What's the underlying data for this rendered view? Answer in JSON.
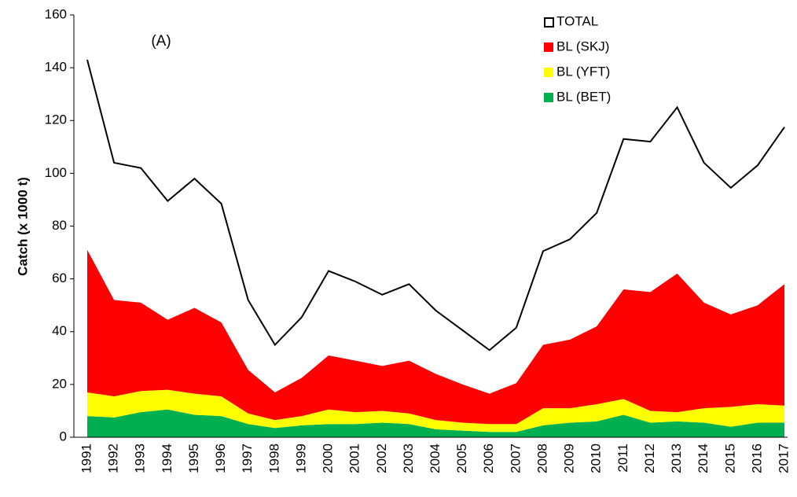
{
  "chart_data": {
    "type": "stacked-area",
    "ylabel": "Catch (x 1000 t)",
    "annotation": "(A)",
    "categories": [
      "1991",
      "1992",
      "1993",
      "1994",
      "1995",
      "1996",
      "1997",
      "1998",
      "1999",
      "2000",
      "2001",
      "2002",
      "2003",
      "2004",
      "2005",
      "2006",
      "2007",
      "2008",
      "2009",
      "2010",
      "2011",
      "2012",
      "2013",
      "2014",
      "2015",
      "2016",
      "2017"
    ],
    "series": [
      {
        "name": "TOTAL",
        "color": "#000000",
        "stacked": false,
        "values": [
          143,
          104,
          102,
          89.5,
          98,
          88.5,
          52,
          35,
          45.5,
          63,
          59,
          54,
          58,
          48,
          40.5,
          33,
          41.5,
          70.5,
          75,
          85,
          113,
          112,
          125,
          104,
          94.5,
          103,
          117.5
        ]
      },
      {
        "name": "BL (SKJ)",
        "color": "#ff0000",
        "stacked": true,
        "values": [
          54,
          36.5,
          33.5,
          26.5,
          32.5,
          28,
          16.5,
          10.5,
          14.5,
          20.5,
          19.5,
          17,
          20,
          17.5,
          14.5,
          11.5,
          15.5,
          24,
          26,
          29.5,
          41.5,
          45,
          52.5,
          40,
          35,
          37.5,
          46
        ]
      },
      {
        "name": "BL (YFT)",
        "color": "#ffff00",
        "stacked": true,
        "values": [
          9,
          8,
          8,
          7.5,
          8,
          7.5,
          4,
          3,
          3.5,
          5.5,
          4.5,
          4.5,
          4,
          3.5,
          3,
          3,
          3,
          6.5,
          5.5,
          6.5,
          6,
          4.5,
          3.5,
          5.5,
          7.5,
          7,
          6.5
        ]
      },
      {
        "name": "BL (BET)",
        "color": "#00b050",
        "stacked": true,
        "values": [
          8,
          7.5,
          9.5,
          10.5,
          8.5,
          8,
          5,
          3.5,
          4.5,
          5,
          5,
          5.5,
          5,
          3,
          2.5,
          2,
          2,
          4.5,
          5.5,
          6,
          8.5,
          5.5,
          6,
          5.5,
          4,
          5.5,
          5.5
        ]
      }
    ],
    "ylim": [
      0,
      160
    ],
    "yticks": [
      0,
      20,
      40,
      60,
      80,
      100,
      120,
      140,
      160
    ],
    "legend": "top-right"
  }
}
